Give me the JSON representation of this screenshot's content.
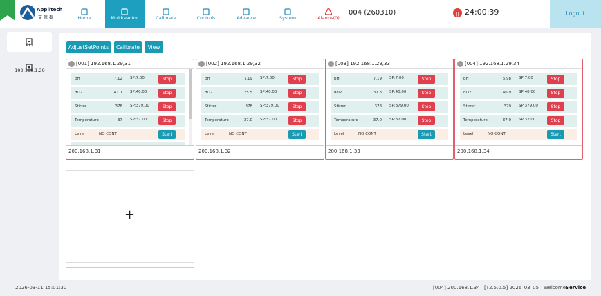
{
  "header": {
    "brand": "Applitech",
    "brand_cn": "艾 就 泰",
    "nav": [
      "Home",
      "Multireactor",
      "Calibrate",
      "Controls",
      "Advance",
      "System"
    ],
    "alarms": "Alarms(0)",
    "unit": "004 (260310)",
    "timer": "24:00:39",
    "logout": "Logout"
  },
  "sidebar": [
    "ALL",
    "192.168.1.29"
  ],
  "toolbar": [
    "AdjustSetPoints",
    "Calibrate",
    "View"
  ],
  "cards": [
    {
      "title": "[001] 192.168.1.29,31",
      "footer": "200.168.1.31",
      "rows": [
        {
          "name": "pH",
          "value": "7.12",
          "sp": "SP:7.00",
          "button": "Stop"
        },
        {
          "name": "dO2",
          "value": "41.1",
          "sp": "SP:40.00",
          "button": "Stop"
        },
        {
          "name": "Stirrer",
          "value": "378",
          "sp": "SP:379.00",
          "button": "Stop"
        },
        {
          "name": "Temperature",
          "value": "37",
          "sp": "SP:37.00",
          "button": "Stop"
        },
        {
          "name": "Level",
          "value": "NO CONT",
          "button": "Start"
        }
      ]
    },
    {
      "title": "[002] 192.168.1.29,32",
      "footer": "200.168.1.32",
      "rows": [
        {
          "name": "pH",
          "value": "7.19",
          "sp": "SP:7.00",
          "button": "Stop"
        },
        {
          "name": "dO2",
          "value": "35.5",
          "sp": "SP:40.00",
          "button": "Stop"
        },
        {
          "name": "Stirrer",
          "value": "378",
          "sp": "SP:379.00",
          "button": "Stop"
        },
        {
          "name": "Temperature",
          "value": "37.0",
          "sp": "SP:37.00",
          "button": "Stop"
        },
        {
          "name": "Level",
          "value": "NO CONT",
          "button": "Start"
        }
      ]
    },
    {
      "title": "[003] 192.168.1.29,33",
      "footer": "200.168.1.33",
      "rows": [
        {
          "name": "pH",
          "value": "7.19",
          "sp": "SP:7.00",
          "button": "Stop"
        },
        {
          "name": "dO2",
          "value": "37.3",
          "sp": "SP:40.00",
          "button": "Stop"
        },
        {
          "name": "Stirrer",
          "value": "378",
          "sp": "SP:379.00",
          "button": "Stop"
        },
        {
          "name": "Temperature",
          "value": "37.0",
          "sp": "SP:37.00",
          "button": "Stop"
        },
        {
          "name": "Level",
          "value": "NO CONT",
          "button": "Start"
        }
      ]
    },
    {
      "title": "[004] 192.168.1.29,34",
      "footer": "200.168.1.34",
      "rows": [
        {
          "name": "pH",
          "value": "6.98",
          "sp": "SP:7.00",
          "button": "Stop"
        },
        {
          "name": "dO2",
          "value": "46.9",
          "sp": "SP:40.00",
          "button": "Stop"
        },
        {
          "name": "Stirrer",
          "value": "379",
          "sp": "SP:379.00",
          "button": "Stop"
        },
        {
          "name": "Temperature",
          "value": "37.0",
          "sp": "SP:37.00",
          "button": "Stop"
        },
        {
          "name": "Level",
          "value": "NO CONT",
          "button": "Start"
        }
      ]
    }
  ],
  "add_card": "+",
  "status": {
    "datetime": "2026-03-11 15:01:30",
    "device": "[004] 200.168.1.34",
    "version": "[T2.5.0.5] 2026_03_05",
    "welcome": "Welcome",
    "user": "Service"
  }
}
